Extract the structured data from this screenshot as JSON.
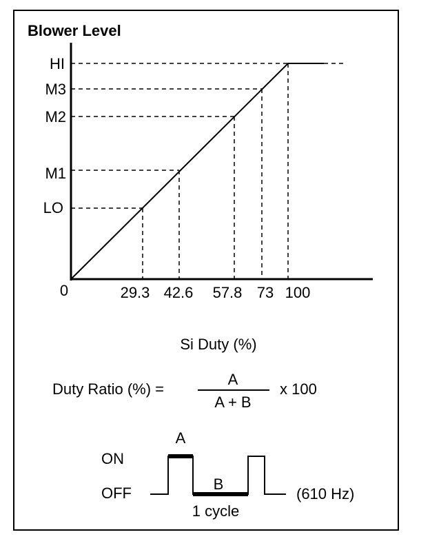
{
  "chart": {
    "title": "Blower Level",
    "origin_label": "0",
    "xlabel": "Si Duty (%)",
    "levels": [
      "LO",
      "M1",
      "M2",
      "M3",
      "HI"
    ],
    "x_ticks": [
      "29.3",
      "42.6",
      "57.8",
      "73",
      "100"
    ]
  },
  "formula": {
    "lhs": "Duty Ratio (%) =",
    "numerator": "A",
    "denominator": "A + B",
    "multiplier": "x 100"
  },
  "waveform": {
    "on_label": "ON",
    "off_label": "OFF",
    "a_label": "A",
    "b_label": "B",
    "cycle_label": "1 cycle",
    "frequency": "(610 Hz)"
  }
}
